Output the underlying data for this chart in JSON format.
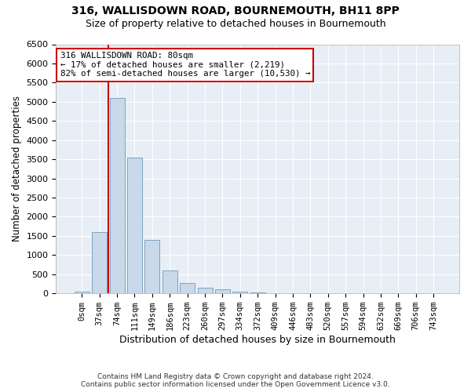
{
  "title1": "316, WALLISDOWN ROAD, BOURNEMOUTH, BH11 8PP",
  "title2": "Size of property relative to detached houses in Bournemouth",
  "xlabel": "Distribution of detached houses by size in Bournemouth",
  "ylabel": "Number of detached properties",
  "footer1": "Contains HM Land Registry data © Crown copyright and database right 2024.",
  "footer2": "Contains public sector information licensed under the Open Government Licence v3.0.",
  "annotation_title": "316 WALLISDOWN ROAD: 80sqm",
  "annotation_line1": "← 17% of detached houses are smaller (2,219)",
  "annotation_line2": "82% of semi-detached houses are larger (10,530) →",
  "property_size_sqm": 80,
  "bar_categories": [
    "0sqm",
    "37sqm",
    "74sqm",
    "111sqm",
    "149sqm",
    "186sqm",
    "223sqm",
    "260sqm",
    "297sqm",
    "334sqm",
    "372sqm",
    "409sqm",
    "446sqm",
    "483sqm",
    "520sqm",
    "557sqm",
    "594sqm",
    "632sqm",
    "669sqm",
    "706sqm",
    "743sqm"
  ],
  "bar_values": [
    50,
    1600,
    5100,
    3550,
    1400,
    600,
    270,
    140,
    100,
    50,
    30,
    10,
    5,
    2,
    1,
    0,
    0,
    0,
    0,
    0,
    0
  ],
  "bar_color": "#c9d9ea",
  "bar_edge_color": "#7098b8",
  "vline_color": "#cc0000",
  "vline_x_index": 2.0,
  "ylim_max": 6500,
  "ytick_step": 500,
  "annotation_box_color": "#cc0000",
  "background_color": "#e8eef5",
  "grid_color": "#ffffff",
  "fig_width": 6.0,
  "fig_height": 5.0,
  "dpi": 100
}
